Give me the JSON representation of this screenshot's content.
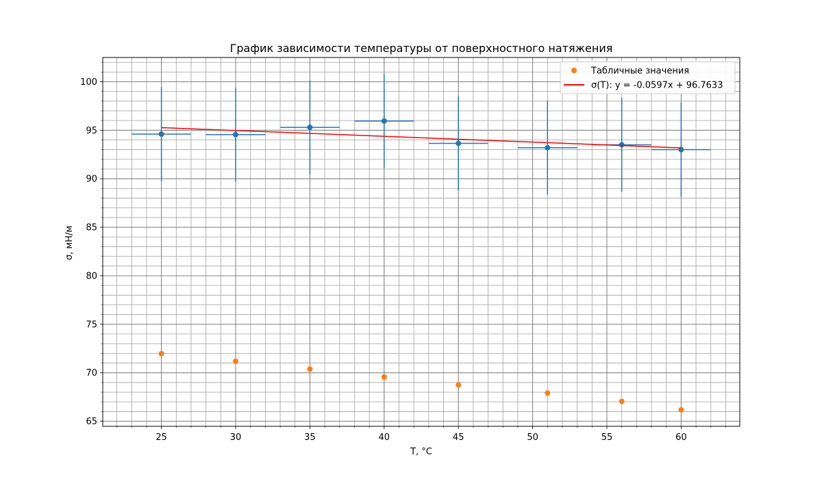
{
  "chart_data": {
    "type": "scatter",
    "title": "График зависимости температуры от поверхностного натяжения",
    "xlabel": "T, °C",
    "ylabel": "σ, мН/м",
    "xlim": [
      21.05,
      63.95
    ],
    "ylim": [
      64.48,
      102.5
    ],
    "x_ticks": [
      25,
      30,
      35,
      40,
      45,
      50,
      55,
      60
    ],
    "y_ticks": [
      65,
      70,
      75,
      80,
      85,
      90,
      95,
      100
    ],
    "x_minor_step": 1,
    "y_minor_step": 1,
    "grid": "major and minor",
    "legend_position": "top-right",
    "series": [
      {
        "name": "",
        "kind": "errorbar",
        "color": "#1f77b4",
        "x": [
          25,
          30,
          35,
          40,
          45,
          51,
          56,
          60
        ],
        "y": [
          94.6,
          94.55,
          95.3,
          95.95,
          93.65,
          93.2,
          93.5,
          93.0
        ],
        "xerr": 2,
        "yerr": 4.85
      },
      {
        "name": "Табличные значения",
        "kind": "scatter",
        "color": "#ff7f0e",
        "x": [
          25,
          30,
          35,
          40,
          45,
          51,
          56,
          60
        ],
        "y": [
          71.97,
          71.18,
          70.38,
          69.56,
          68.74,
          67.91,
          67.05,
          66.18
        ]
      },
      {
        "name": "σ(T): y = -0.0597x + 96.7633",
        "kind": "line",
        "color": "#ff0000",
        "slope": -0.0597,
        "intercept": 96.7633,
        "x_range": [
          25,
          60
        ]
      }
    ]
  }
}
